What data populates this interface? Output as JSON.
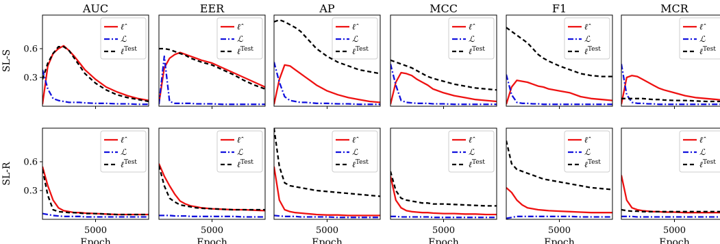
{
  "chart_data": {
    "type": "line",
    "columns": [
      "AUC",
      "EER",
      "AP",
      "MCC",
      "F1",
      "MCR"
    ],
    "rows": [
      "SL-S",
      "SL-R"
    ],
    "xlabel": "Epoch",
    "xticks": [
      5000
    ],
    "yticks": [
      0.3,
      0.6
    ],
    "xlim": [
      0,
      10000
    ],
    "ylim": [
      0,
      0.95
    ],
    "legend": {
      "position": "top-right",
      "entries": [
        {
          "key": "lhat",
          "base": "ℓ̂",
          "sup": ""
        },
        {
          "key": "L",
          "base": "ℒ",
          "sup": ""
        },
        {
          "key": "ltest",
          "base": "ℓ",
          "sup": "Test"
        }
      ]
    },
    "styles": {
      "lhat": {
        "color": "#ee1111",
        "dash": "solid"
      },
      "L": {
        "color": "#1111dd",
        "dash": "dashdot"
      },
      "ltest": {
        "color": "#000000",
        "dash": "dashed"
      }
    },
    "x": [
      0,
      500,
      1000,
      1500,
      2000,
      2500,
      3000,
      3500,
      4000,
      5000,
      6000,
      7000,
      8000,
      9000,
      10000
    ],
    "panels": [
      {
        "row": "SL-S",
        "col": "AUC",
        "series": [
          {
            "key": "lhat",
            "values": [
              0.02,
              0.42,
              0.55,
              0.6,
              0.63,
              0.58,
              0.52,
              0.45,
              0.38,
              0.28,
              0.2,
              0.15,
              0.11,
              0.08,
              0.06
            ]
          },
          {
            "key": "L",
            "values": [
              0.38,
              0.18,
              0.08,
              0.06,
              0.05,
              0.04,
              0.04,
              0.04,
              0.035,
              0.03,
              0.03,
              0.025,
              0.025,
              0.02,
              0.02
            ]
          },
          {
            "key": "ltest",
            "values": [
              0.28,
              0.45,
              0.55,
              0.62,
              0.62,
              0.58,
              0.5,
              0.42,
              0.34,
              0.24,
              0.17,
              0.12,
              0.09,
              0.07,
              0.05
            ]
          }
        ]
      },
      {
        "row": "SL-S",
        "col": "EER",
        "series": [
          {
            "key": "lhat",
            "values": [
              0.03,
              0.4,
              0.5,
              0.54,
              0.56,
              0.54,
              0.52,
              0.5,
              0.48,
              0.45,
              0.4,
              0.35,
              0.3,
              0.25,
              0.2
            ]
          },
          {
            "key": "L",
            "values": [
              0.02,
              0.52,
              0.05,
              0.03,
              0.03,
              0.03,
              0.03,
              0.025,
              0.025,
              0.025,
              0.02,
              0.02,
              0.02,
              0.02,
              0.02
            ]
          },
          {
            "key": "ltest",
            "values": [
              0.6,
              0.6,
              0.59,
              0.57,
              0.55,
              0.53,
              0.5,
              0.48,
              0.46,
              0.43,
              0.38,
              0.33,
              0.27,
              0.22,
              0.18
            ]
          }
        ]
      },
      {
        "row": "SL-S",
        "col": "AP",
        "series": [
          {
            "key": "lhat",
            "values": [
              0.02,
              0.28,
              0.43,
              0.42,
              0.38,
              0.34,
              0.3,
              0.26,
              0.22,
              0.16,
              0.12,
              0.09,
              0.07,
              0.05,
              0.04
            ]
          },
          {
            "key": "L",
            "values": [
              0.46,
              0.25,
              0.1,
              0.06,
              0.05,
              0.04,
              0.04,
              0.035,
              0.03,
              0.03,
              0.025,
              0.025,
              0.02,
              0.02,
              0.02
            ]
          },
          {
            "key": "ltest",
            "values": [
              0.88,
              0.9,
              0.88,
              0.85,
              0.82,
              0.78,
              0.72,
              0.66,
              0.6,
              0.52,
              0.46,
              0.42,
              0.38,
              0.36,
              0.34
            ]
          }
        ]
      },
      {
        "row": "SL-S",
        "col": "MCC",
        "series": [
          {
            "key": "lhat",
            "values": [
              0.02,
              0.25,
              0.35,
              0.34,
              0.32,
              0.28,
              0.25,
              0.22,
              0.18,
              0.14,
              0.11,
              0.09,
              0.07,
              0.06,
              0.05
            ]
          },
          {
            "key": "L",
            "values": [
              0.44,
              0.22,
              0.06,
              0.04,
              0.035,
              0.03,
              0.03,
              0.03,
              0.025,
              0.025,
              0.02,
              0.02,
              0.02,
              0.02,
              0.02
            ]
          },
          {
            "key": "ltest",
            "values": [
              0.48,
              0.46,
              0.44,
              0.42,
              0.4,
              0.37,
              0.34,
              0.31,
              0.29,
              0.26,
              0.23,
              0.21,
              0.19,
              0.18,
              0.17
            ]
          }
        ]
      },
      {
        "row": "SL-S",
        "col": "F1",
        "series": [
          {
            "key": "lhat",
            "values": [
              0.02,
              0.2,
              0.27,
              0.26,
              0.25,
              0.23,
              0.21,
              0.2,
              0.18,
              0.16,
              0.14,
              0.1,
              0.08,
              0.07,
              0.06
            ]
          },
          {
            "key": "L",
            "values": [
              0.33,
              0.12,
              0.04,
              0.03,
              0.03,
              0.025,
              0.025,
              0.02,
              0.02,
              0.02,
              0.02,
              0.02,
              0.02,
              0.02,
              0.02
            ]
          },
          {
            "key": "ltest",
            "values": [
              0.82,
              0.78,
              0.74,
              0.7,
              0.66,
              0.6,
              0.54,
              0.5,
              0.47,
              0.42,
              0.38,
              0.34,
              0.32,
              0.31,
              0.31
            ]
          }
        ]
      },
      {
        "row": "SL-S",
        "col": "MCR",
        "series": [
          {
            "key": "lhat",
            "values": [
              0.02,
              0.3,
              0.32,
              0.31,
              0.28,
              0.25,
              0.22,
              0.19,
              0.17,
              0.14,
              0.11,
              0.09,
              0.08,
              0.07,
              0.06
            ]
          },
          {
            "key": "L",
            "values": [
              0.44,
              0.12,
              0.04,
              0.03,
              0.03,
              0.025,
              0.025,
              0.02,
              0.02,
              0.02,
              0.02,
              0.02,
              0.02,
              0.02,
              0.02
            ]
          },
          {
            "key": "ltest",
            "values": [
              0.08,
              0.08,
              0.08,
              0.08,
              0.08,
              0.075,
              0.07,
              0.07,
              0.065,
              0.06,
              0.06,
              0.055,
              0.05,
              0.05,
              0.05
            ]
          }
        ]
      },
      {
        "row": "SL-R",
        "col": "AUC",
        "series": [
          {
            "key": "lhat",
            "values": [
              0.55,
              0.35,
              0.2,
              0.12,
              0.09,
              0.08,
              0.07,
              0.07,
              0.065,
              0.06,
              0.055,
              0.05,
              0.05,
              0.05,
              0.05
            ]
          },
          {
            "key": "L",
            "values": [
              0.06,
              0.05,
              0.04,
              0.035,
              0.03,
              0.03,
              0.03,
              0.03,
              0.025,
              0.025,
              0.025,
              0.025,
              0.025,
              0.025,
              0.025
            ]
          },
          {
            "key": "ltest",
            "values": [
              0.52,
              0.25,
              0.1,
              0.08,
              0.075,
              0.07,
              0.07,
              0.065,
              0.06,
              0.06,
              0.055,
              0.05,
              0.05,
              0.05,
              0.05
            ]
          }
        ]
      },
      {
        "row": "SL-R",
        "col": "EER",
        "series": [
          {
            "key": "lhat",
            "values": [
              0.58,
              0.45,
              0.35,
              0.26,
              0.19,
              0.16,
              0.14,
              0.13,
              0.12,
              0.11,
              0.105,
              0.1,
              0.1,
              0.095,
              0.09
            ]
          },
          {
            "key": "L",
            "values": [
              0.04,
              0.04,
              0.04,
              0.035,
              0.035,
              0.035,
              0.03,
              0.03,
              0.03,
              0.03,
              0.03,
              0.03,
              0.025,
              0.025,
              0.025
            ]
          },
          {
            "key": "ltest",
            "values": [
              0.56,
              0.35,
              0.22,
              0.18,
              0.15,
              0.14,
              0.13,
              0.12,
              0.115,
              0.11,
              0.105,
              0.1,
              0.1,
              0.1,
              0.1
            ]
          }
        ]
      },
      {
        "row": "SL-R",
        "col": "AP",
        "series": [
          {
            "key": "lhat",
            "values": [
              0.55,
              0.2,
              0.1,
              0.08,
              0.07,
              0.065,
              0.06,
              0.055,
              0.05,
              0.045,
              0.045,
              0.04,
              0.04,
              0.04,
              0.04
            ]
          },
          {
            "key": "L",
            "values": [
              0.04,
              0.035,
              0.03,
              0.03,
              0.03,
              0.025,
              0.025,
              0.025,
              0.025,
              0.025,
              0.02,
              0.02,
              0.02,
              0.02,
              0.02
            ]
          },
          {
            "key": "ltest",
            "values": [
              0.95,
              0.55,
              0.38,
              0.35,
              0.34,
              0.33,
              0.32,
              0.31,
              0.3,
              0.29,
              0.28,
              0.27,
              0.26,
              0.25,
              0.24
            ]
          }
        ]
      },
      {
        "row": "SL-R",
        "col": "MCC",
        "series": [
          {
            "key": "lhat",
            "values": [
              0.45,
              0.2,
              0.12,
              0.09,
              0.08,
              0.075,
              0.07,
              0.07,
              0.065,
              0.06,
              0.06,
              0.055,
              0.055,
              0.05,
              0.05
            ]
          },
          {
            "key": "L",
            "values": [
              0.03,
              0.03,
              0.025,
              0.025,
              0.025,
              0.025,
              0.025,
              0.025,
              0.02,
              0.02,
              0.02,
              0.02,
              0.02,
              0.02,
              0.02
            ]
          },
          {
            "key": "ltest",
            "values": [
              0.5,
              0.3,
              0.22,
              0.2,
              0.19,
              0.18,
              0.17,
              0.17,
              0.16,
              0.16,
              0.155,
              0.15,
              0.145,
              0.14,
              0.14
            ]
          }
        ]
      },
      {
        "row": "SL-R",
        "col": "F1",
        "series": [
          {
            "key": "lhat",
            "values": [
              0.33,
              0.28,
              0.2,
              0.15,
              0.12,
              0.11,
              0.1,
              0.095,
              0.09,
              0.085,
              0.08,
              0.075,
              0.07,
              0.07,
              0.07
            ]
          },
          {
            "key": "L",
            "values": [
              0.01,
              0.02,
              0.03,
              0.03,
              0.03,
              0.03,
              0.03,
              0.03,
              0.03,
              0.03,
              0.03,
              0.025,
              0.025,
              0.025,
              0.025
            ]
          },
          {
            "key": "ltest",
            "values": [
              0.82,
              0.58,
              0.52,
              0.5,
              0.48,
              0.46,
              0.44,
              0.42,
              0.41,
              0.39,
              0.37,
              0.35,
              0.33,
              0.32,
              0.31
            ]
          }
        ]
      },
      {
        "row": "SL-R",
        "col": "MCR",
        "series": [
          {
            "key": "lhat",
            "values": [
              0.46,
              0.2,
              0.12,
              0.1,
              0.09,
              0.085,
              0.08,
              0.08,
              0.075,
              0.075,
              0.07,
              0.07,
              0.07,
              0.07,
              0.07
            ]
          },
          {
            "key": "L",
            "values": [
              0.03,
              0.03,
              0.03,
              0.025,
              0.025,
              0.025,
              0.025,
              0.025,
              0.025,
              0.025,
              0.025,
              0.025,
              0.025,
              0.025,
              0.025
            ]
          },
          {
            "key": "ltest",
            "values": [
              0.1,
              0.09,
              0.085,
              0.085,
              0.08,
              0.08,
              0.08,
              0.08,
              0.08,
              0.08,
              0.08,
              0.08,
              0.08,
              0.08,
              0.08
            ]
          }
        ]
      }
    ]
  }
}
